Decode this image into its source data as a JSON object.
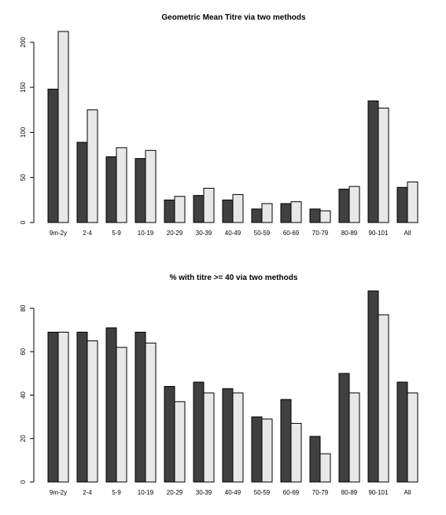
{
  "colors": {
    "series1": "#404040",
    "series2": "#e8e8e8"
  },
  "chart_data": [
    {
      "type": "bar",
      "title": "Geometric Mean Titre via two methods",
      "categories": [
        "9m-2y",
        "2-4",
        "5-9",
        "10-19",
        "20-29",
        "30-39",
        "40-49",
        "50-59",
        "60-69",
        "70-79",
        "80-89",
        "90-101",
        "All"
      ],
      "series": [
        {
          "values": [
            148,
            89,
            73,
            71,
            25,
            30,
            25,
            15,
            21,
            15,
            37,
            135,
            39
          ]
        },
        {
          "values": [
            212,
            125,
            83,
            80,
            29,
            38,
            31,
            21,
            23,
            13,
            40,
            127,
            45
          ]
        }
      ],
      "yticks": [
        0,
        50,
        100,
        150,
        200
      ],
      "ylim": [
        0,
        212
      ],
      "xlabel": "",
      "ylabel": "",
      "grid": false,
      "legend": "none"
    },
    {
      "type": "bar",
      "title": "% with titre >= 40 via two methods",
      "categories": [
        "9m-2y",
        "2-4",
        "5-9",
        "10-19",
        "20-29",
        "30-39",
        "40-49",
        "50-59",
        "60-69",
        "70-79",
        "80-89",
        "90-101",
        "All"
      ],
      "series": [
        {
          "values": [
            69,
            69,
            71,
            69,
            44,
            46,
            43,
            30,
            38,
            21,
            50,
            88,
            46
          ]
        },
        {
          "values": [
            69,
            65,
            62,
            64,
            37,
            41,
            41,
            29,
            27,
            13,
            41,
            77,
            41
          ]
        }
      ],
      "yticks": [
        0,
        20,
        40,
        60,
        80
      ],
      "ylim": [
        0,
        88
      ],
      "xlabel": "",
      "ylabel": "",
      "grid": false,
      "legend": "none"
    }
  ]
}
